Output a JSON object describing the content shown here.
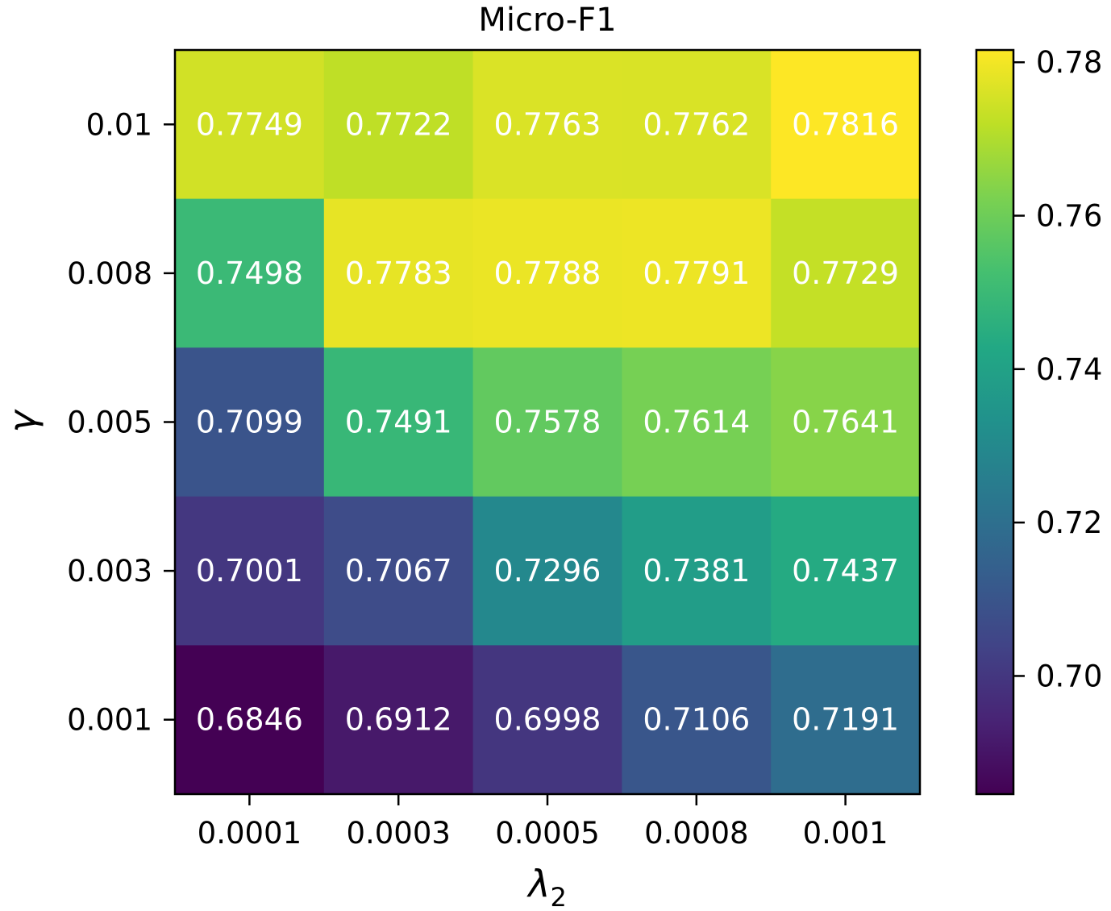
{
  "chart_data": {
    "type": "heatmap",
    "title": "Micro-F1",
    "xlabel": "λ",
    "xlabel_subscript": "2",
    "ylabel": "γ",
    "x_categories": [
      "0.0001",
      "0.0003",
      "0.0005",
      "0.0008",
      "0.001"
    ],
    "y_categories": [
      "0.01",
      "0.008",
      "0.005",
      "0.003",
      "0.001"
    ],
    "values": [
      [
        0.7749,
        0.7722,
        0.7763,
        0.7762,
        0.7816
      ],
      [
        0.7498,
        0.7783,
        0.7788,
        0.7791,
        0.7729
      ],
      [
        0.7099,
        0.7491,
        0.7578,
        0.7614,
        0.7641
      ],
      [
        0.7001,
        0.7067,
        0.7296,
        0.7381,
        0.7437
      ],
      [
        0.6846,
        0.6912,
        0.6998,
        0.7106,
        0.7191
      ]
    ],
    "value_labels": [
      [
        "0.7749",
        "0.7722",
        "0.7763",
        "0.7762",
        "0.7816"
      ],
      [
        "0.7498",
        "0.7783",
        "0.7788",
        "0.7791",
        "0.7729"
      ],
      [
        "0.7099",
        "0.7491",
        "0.7578",
        "0.7614",
        "0.7641"
      ],
      [
        "0.7001",
        "0.7067",
        "0.7296",
        "0.7381",
        "0.7437"
      ],
      [
        "0.6846",
        "0.6912",
        "0.6998",
        "0.7106",
        "0.7191"
      ]
    ],
    "colormap": "viridis",
    "color_range": [
      0.6846,
      0.7816
    ],
    "colorbar": {
      "ticks": [
        0.7,
        0.72,
        0.74,
        0.76,
        0.78
      ],
      "tick_labels": [
        "0.70",
        "0.72",
        "0.74",
        "0.76",
        "0.78"
      ]
    },
    "annotation_color": "#ffffff"
  }
}
